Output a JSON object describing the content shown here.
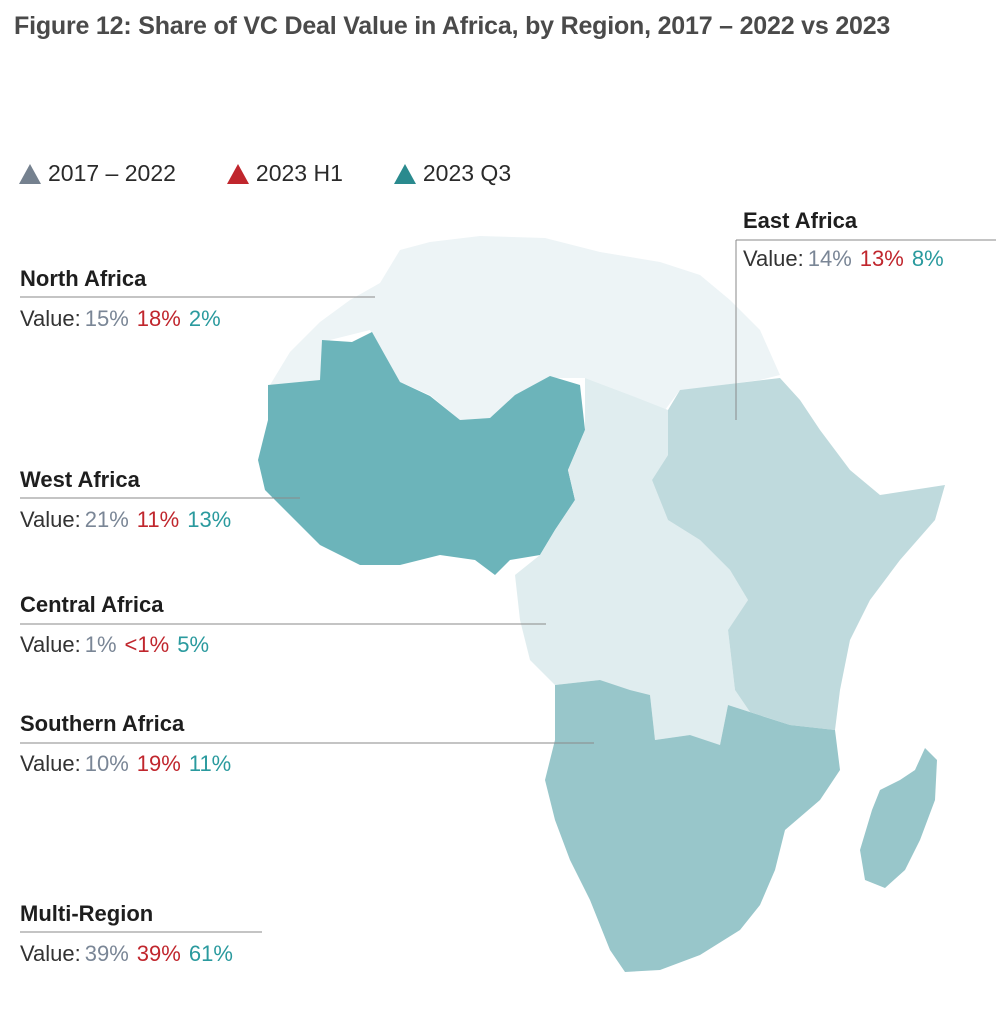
{
  "title": "Figure 12: Share of VC Deal Value in Africa, by Region, 2017 – 2022 vs 2023",
  "legend": [
    {
      "label": "2017 – 2022",
      "color": "#75818f"
    },
    {
      "label": "2023 H1",
      "color": "#c0262d"
    },
    {
      "label": "2023 Q3",
      "color": "#2a8a8e"
    }
  ],
  "value_prefix": "Value:",
  "regions": {
    "north": {
      "name": "North Africa",
      "v1": "15%",
      "v2": "18%",
      "v3": "2%"
    },
    "west": {
      "name": "West Africa",
      "v1": "21%",
      "v2": "11%",
      "v3": "13%"
    },
    "central": {
      "name": "Central Africa",
      "v1": "1%",
      "v2": "<1%",
      "v3": "5%"
    },
    "southern": {
      "name": "Southern Africa",
      "v1": "10%",
      "v2": "19%",
      "v3": "11%"
    },
    "multi": {
      "name": "Multi-Region",
      "v1": "39%",
      "v2": "39%",
      "v3": "61%"
    },
    "east": {
      "name": "East Africa",
      "v1": "14%",
      "v2": "13%",
      "v3": "8%"
    }
  },
  "colors": {
    "north": "#edf4f6",
    "west": "#6cb4ba",
    "central": "#e0edef",
    "east": "#bfdadd",
    "southern": "#98c6ca",
    "madagascar": "#98c6ca"
  }
}
